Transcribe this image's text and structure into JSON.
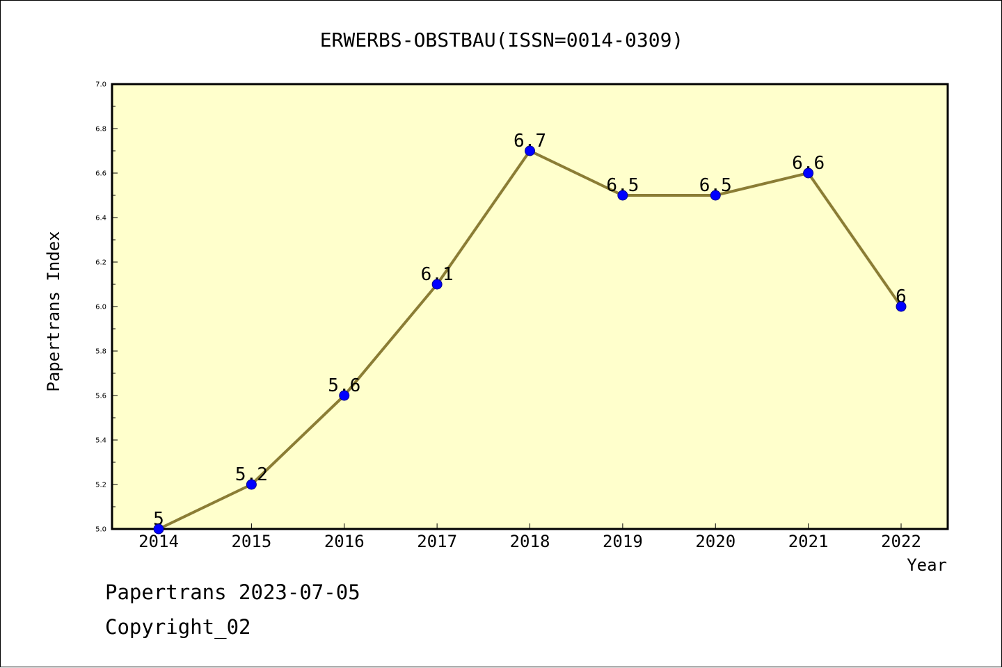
{
  "chart_data": {
    "type": "line",
    "title": "ERWERBS-OBSTBAU(ISSN=0014-0309)",
    "xlabel": "Year",
    "ylabel": "Papertrans Index",
    "categories": [
      "2014",
      "2015",
      "2016",
      "2017",
      "2018",
      "2019",
      "2020",
      "2021",
      "2022"
    ],
    "values": [
      5,
      5.2,
      5.6,
      6.1,
      6.7,
      6.5,
      6.5,
      6.6,
      6
    ],
    "data_labels": [
      "5",
      "5.2",
      "5.6",
      "6.1",
      "6.7",
      "6.5",
      "6.5",
      "6.6",
      "6"
    ],
    "ylim": [
      5.0,
      7.0
    ],
    "yticks": [
      "5.0",
      "5.2",
      "5.4",
      "5.6",
      "5.8",
      "6.0",
      "6.2",
      "6.4",
      "6.6",
      "6.8",
      "7.0"
    ],
    "grid": false,
    "colors": {
      "plot_background": "#ffffcc",
      "line": "#8b7d35",
      "marker": "#0000ff"
    }
  },
  "footer": {
    "source": "Papertrans 2023-07-05",
    "copyright": "Copyright_02"
  }
}
